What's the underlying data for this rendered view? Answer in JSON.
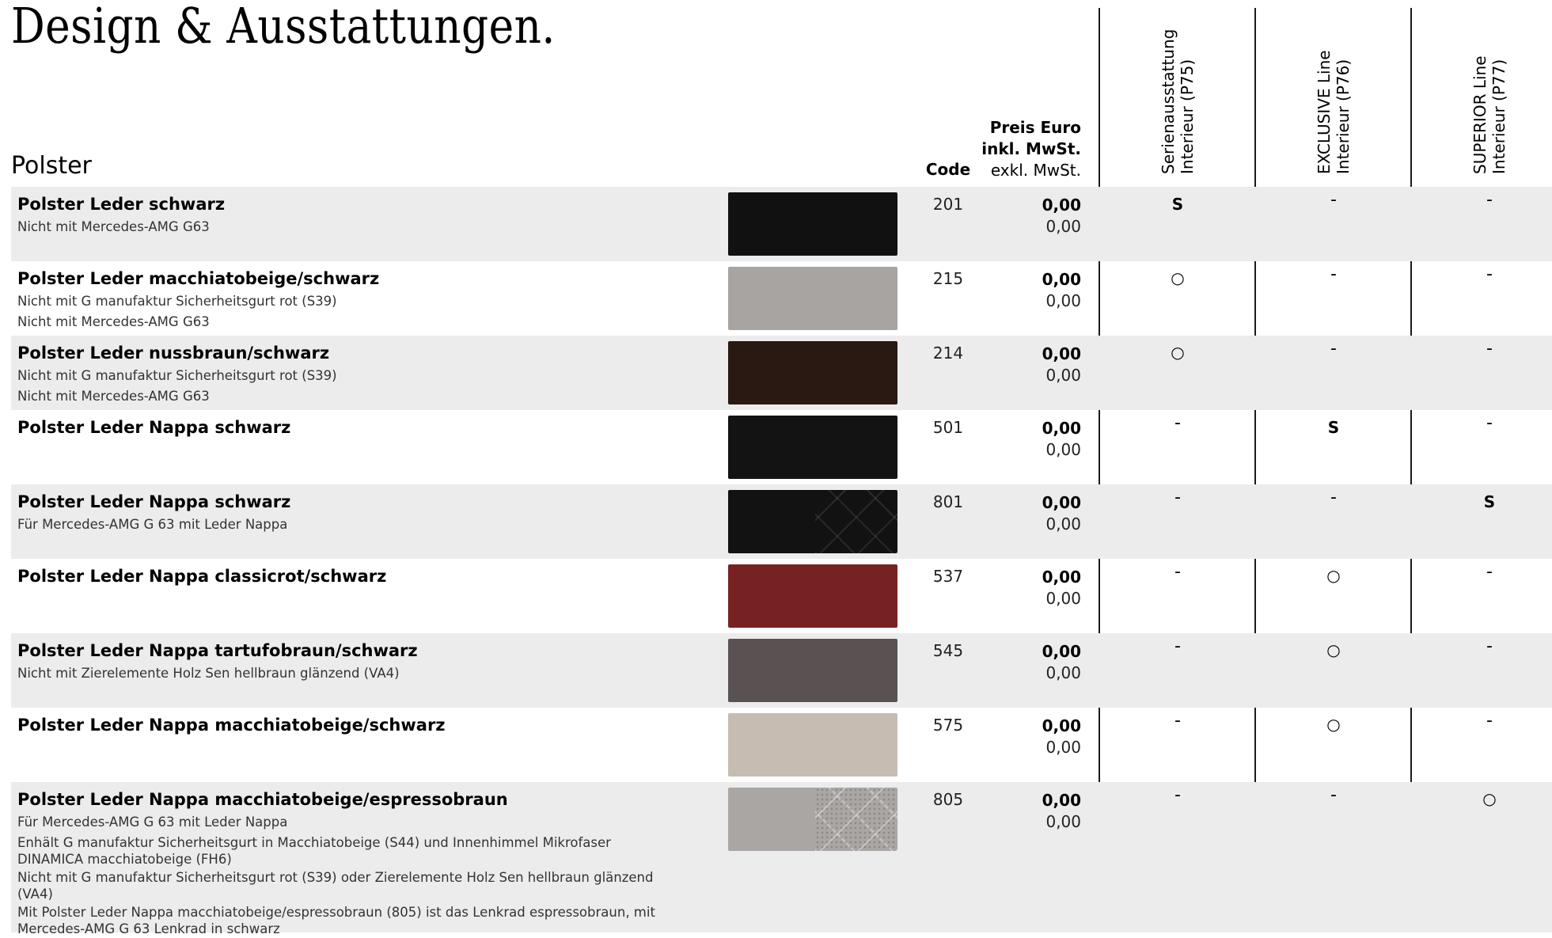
{
  "page": {
    "title": "Design & Ausstattungen.",
    "section": "Polster"
  },
  "header": {
    "code": "Code",
    "price_line1": "Preis Euro",
    "price_line2": "inkl. MwSt.",
    "price_line3": "exkl. MwSt.",
    "lines": [
      {
        "line1": "Serienausstattung",
        "line2": "Interieur (P75)"
      },
      {
        "line1": "EXCLUSIVE Line",
        "line2": "Interieur (P76)"
      },
      {
        "line1": "SUPERIOR Line",
        "line2": "Interieur (P77)"
      }
    ]
  },
  "colors": {
    "row_grey": "#ececec",
    "divider": "#1a1a1a"
  },
  "rows": [
    {
      "name": "Polster Leder schwarz",
      "notes": [
        "Nicht mit Mercedes-AMG G63"
      ],
      "code": "201",
      "price_incl": "0,00",
      "price_excl": "0,00",
      "swatch_color": "#111111",
      "quilted": false,
      "marks": [
        "S",
        "-",
        "-"
      ]
    },
    {
      "name": "Polster Leder macchiatobeige/schwarz",
      "notes": [
        "Nicht mit G manufaktur Sicherheitsgurt rot (S39)",
        "Nicht mit Mercedes-AMG G63"
      ],
      "code": "215",
      "price_incl": "0,00",
      "price_excl": "0,00",
      "swatch_color": "#a8a4a1",
      "quilted": false,
      "marks": [
        "○",
        "-",
        "-"
      ]
    },
    {
      "name": "Polster Leder nussbraun/schwarz",
      "notes": [
        "Nicht mit G manufaktur Sicherheitsgurt rot (S39)",
        "Nicht mit Mercedes-AMG G63"
      ],
      "code": "214",
      "price_incl": "0,00",
      "price_excl": "0,00",
      "swatch_color": "#2a1812",
      "quilted": false,
      "marks": [
        "○",
        "-",
        "-"
      ]
    },
    {
      "name": "Polster Leder Nappa schwarz",
      "notes": [],
      "code": "501",
      "price_incl": "0,00",
      "price_excl": "0,00",
      "swatch_color": "#131313",
      "quilted": false,
      "marks": [
        "-",
        "S",
        "-"
      ]
    },
    {
      "name": "Polster Leder Nappa schwarz",
      "notes": [
        "Für Mercedes-AMG G 63 mit Leder Nappa"
      ],
      "code": "801",
      "price_incl": "0,00",
      "price_excl": "0,00",
      "swatch_color": "#121212",
      "quilted": true,
      "marks": [
        "-",
        "-",
        "S"
      ]
    },
    {
      "name": "Polster Leder Nappa classicrot/schwarz",
      "notes": [],
      "code": "537",
      "price_incl": "0,00",
      "price_excl": "0,00",
      "swatch_color": "#762222",
      "quilted": false,
      "marks": [
        "-",
        "○",
        "-"
      ]
    },
    {
      "name": "Polster Leder Nappa tartufobraun/schwarz",
      "notes": [
        "Nicht mit Zierelemente Holz Sen hellbraun glänzend (VA4)"
      ],
      "code": "545",
      "price_incl": "0,00",
      "price_excl": "0,00",
      "swatch_color": "#5a5252",
      "quilted": false,
      "marks": [
        "-",
        "○",
        "-"
      ]
    },
    {
      "name": "Polster Leder Nappa macchiatobeige/schwarz",
      "notes": [],
      "code": "575",
      "price_incl": "0,00",
      "price_excl": "0,00",
      "swatch_color": "#c6bcb2",
      "quilted": false,
      "marks": [
        "-",
        "○",
        "-"
      ]
    },
    {
      "name": "Polster Leder Nappa macchiatobeige/espressobraun",
      "notes": [
        "Für Mercedes-AMG G 63 mit Leder Nappa",
        "Enhält G manufaktur Sicherheitsgurt in Macchiatobeige (S44) und Innenhimmel Mikrofaser DINAMICA macchiatobeige (FH6)",
        "Nicht mit G manufaktur Sicherheitsgurt rot (S39) oder Zierelemente Holz Sen hellbraun glänzend (VA4)",
        "Mit Polster Leder Nappa macchiatobeige/espressobraun (805) ist das Lenkrad espressobraun, mit Mercedes-AMG G 63 Lenkrad in schwarz"
      ],
      "code": "805",
      "price_incl": "0,00",
      "price_excl": "0,00",
      "swatch_color": "#aaa6a4",
      "quilted": true,
      "marks": [
        "-",
        "-",
        "○"
      ]
    }
  ]
}
